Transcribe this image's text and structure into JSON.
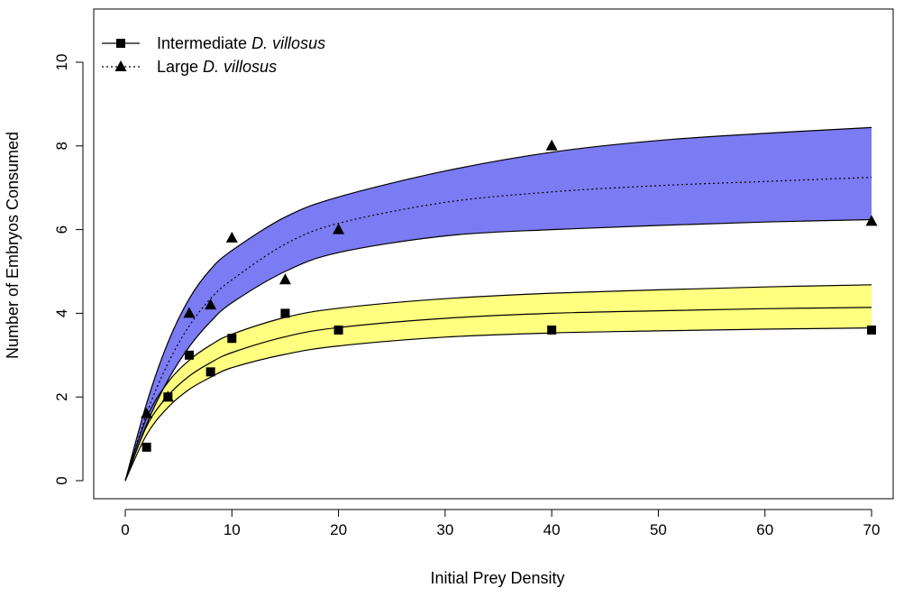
{
  "chart_data": {
    "type": "scatter",
    "xlabel": "Initial Prey Density",
    "ylabel": "Number of Embryos Consumed",
    "xlim": [
      0,
      70
    ],
    "ylim": [
      0,
      10
    ],
    "x_ticks": [
      0,
      10,
      20,
      30,
      40,
      50,
      60,
      70
    ],
    "y_ticks": [
      0,
      2,
      4,
      6,
      8,
      10
    ],
    "grid": false,
    "legend_position": "top-left",
    "series": [
      {
        "name": "Intermediate D. villosus",
        "legend_prefix": "Intermediate ",
        "legend_italic": "D. villosus",
        "marker": "square",
        "line_style": "solid",
        "points": {
          "x": [
            2,
            4,
            6,
            8,
            10,
            15,
            20,
            40,
            70
          ],
          "y": [
            0.8,
            2.0,
            3.0,
            2.6,
            3.4,
            4.0,
            3.6,
            3.6,
            3.6
          ]
        },
        "fitted_curve": {
          "x": [
            0,
            2,
            4,
            6,
            8,
            10,
            15,
            20,
            30,
            40,
            50,
            60,
            70
          ],
          "y": [
            0,
            1.3,
            2.03,
            2.5,
            2.82,
            3.06,
            3.44,
            3.66,
            3.88,
            4.0,
            4.06,
            4.11,
            4.14
          ]
        },
        "ci_upper": {
          "x": [
            0,
            2,
            4,
            6,
            8,
            10,
            15,
            20,
            30,
            40,
            50,
            60,
            70
          ],
          "y": [
            0,
            1.5,
            2.35,
            2.88,
            3.24,
            3.5,
            3.9,
            4.12,
            4.35,
            4.48,
            4.56,
            4.63,
            4.68
          ]
        },
        "ci_lower": {
          "x": [
            0,
            2,
            4,
            6,
            8,
            10,
            15,
            20,
            30,
            40,
            50,
            60,
            70
          ],
          "y": [
            0,
            1.1,
            1.75,
            2.18,
            2.47,
            2.7,
            3.02,
            3.22,
            3.43,
            3.53,
            3.58,
            3.62,
            3.65
          ]
        },
        "band_color": "#ffff80"
      },
      {
        "name": "Large D. villosus",
        "legend_prefix": "Large ",
        "legend_italic": "D. villosus",
        "marker": "triangle",
        "line_style": "dotted",
        "points": {
          "x": [
            2,
            4,
            6,
            8,
            10,
            15,
            20,
            40,
            70
          ],
          "y": [
            1.6,
            2.0,
            4.0,
            4.2,
            5.8,
            4.8,
            6.0,
            8.0,
            6.2
          ]
        },
        "fitted_curve": {
          "x": [
            0,
            2,
            4,
            6,
            8,
            10,
            15,
            20,
            30,
            40,
            50,
            60,
            70
          ],
          "y": [
            0,
            1.6,
            2.8,
            3.7,
            4.35,
            4.8,
            5.65,
            6.15,
            6.65,
            6.9,
            7.05,
            7.15,
            7.25
          ]
        },
        "ci_upper": {
          "x": [
            0,
            2,
            4,
            6,
            8,
            10,
            15,
            20,
            30,
            40,
            50,
            60,
            70
          ],
          "y": [
            0,
            1.85,
            3.3,
            4.35,
            5.05,
            5.5,
            6.3,
            6.78,
            7.4,
            7.85,
            8.13,
            8.3,
            8.44
          ]
        },
        "ci_lower": {
          "x": [
            0,
            2,
            4,
            6,
            8,
            10,
            15,
            20,
            30,
            40,
            50,
            60,
            70
          ],
          "y": [
            0,
            1.35,
            2.4,
            3.2,
            3.8,
            4.25,
            5.0,
            5.45,
            5.85,
            6.0,
            6.1,
            6.18,
            6.24
          ]
        },
        "band_color": "#7b7bf3"
      }
    ]
  }
}
